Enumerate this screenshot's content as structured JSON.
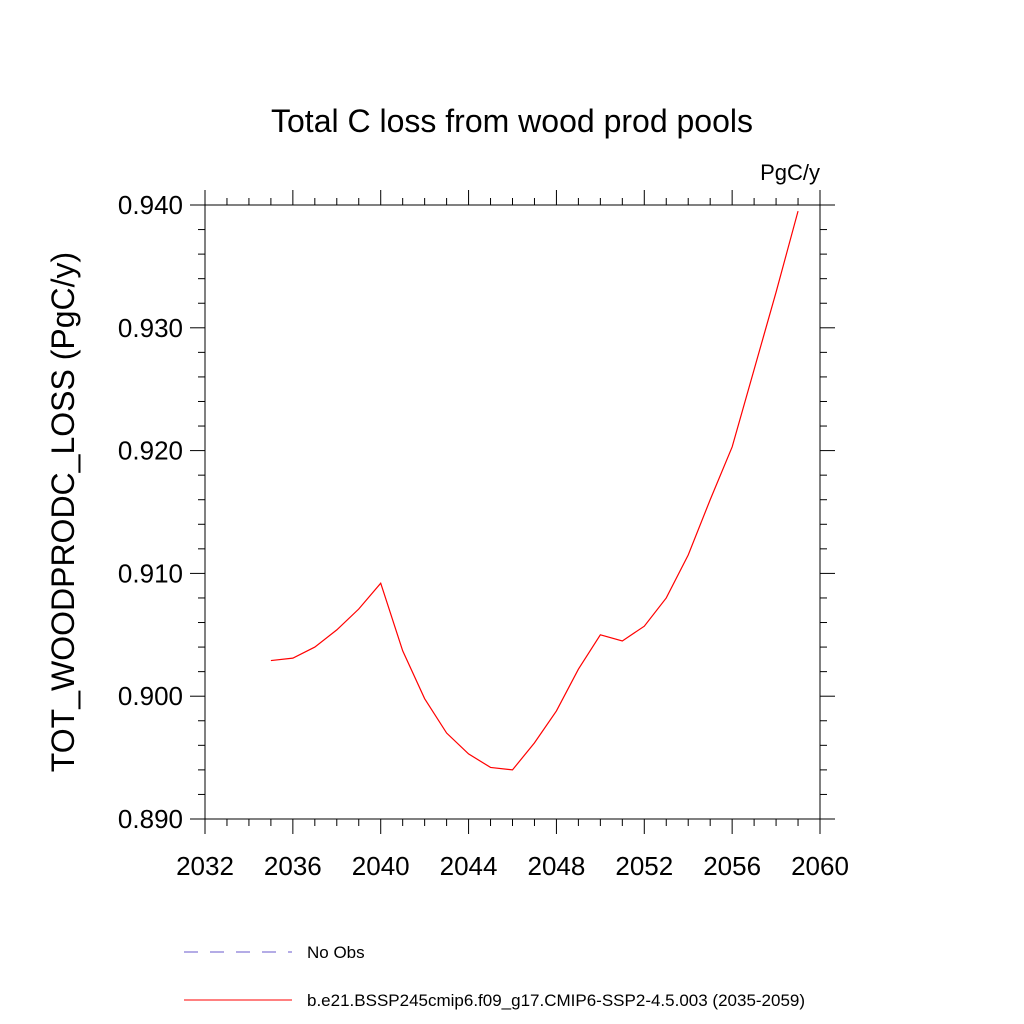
{
  "chart_data": {
    "type": "line",
    "title": "Total C loss from wood prod pools",
    "units_label": "PgC/y",
    "ylabel": "TOT_WOODPRODC_LOSS  (PgC/y)",
    "xlabel": "",
    "xlim": [
      2032,
      2060
    ],
    "ylim": [
      0.89,
      0.94
    ],
    "x_ticks": [
      2032,
      2036,
      2040,
      2044,
      2048,
      2052,
      2056,
      2060
    ],
    "x_tick_labels": [
      "2032",
      "2036",
      "2040",
      "2044",
      "2048",
      "2052",
      "2056",
      "2060"
    ],
    "y_ticks": [
      0.89,
      0.9,
      0.91,
      0.92,
      0.93,
      0.94
    ],
    "y_tick_labels": [
      "0.890",
      "0.900",
      "0.910",
      "0.920",
      "0.930",
      "0.940"
    ],
    "grid": false,
    "legend_position": "bottom",
    "series": [
      {
        "name": "b.e21.BSSP245cmip6.f09_g17.CMIP6-SSP2-4.5.003 (2035-2059)",
        "color": "#ff0000",
        "x": [
          2035,
          2036,
          2037,
          2038,
          2039,
          2040,
          2041,
          2042,
          2043,
          2044,
          2045,
          2046,
          2047,
          2048,
          2049,
          2050,
          2051,
          2052,
          2053,
          2054,
          2055,
          2056,
          2057,
          2058,
          2059
        ],
        "y": [
          0.9029,
          0.9031,
          0.904,
          0.9054,
          0.9071,
          0.9092,
          0.9037,
          0.8998,
          0.897,
          0.8953,
          0.8942,
          0.894,
          0.8962,
          0.8988,
          0.9022,
          0.905,
          0.9045,
          0.9057,
          0.908,
          0.9115,
          0.916,
          0.9203,
          0.9266,
          0.9329,
          0.9395
        ]
      }
    ],
    "legend": [
      {
        "label": "No Obs",
        "color": "#6a5acd",
        "dash": true
      },
      {
        "label": "b.e21.BSSP245cmip6.f09_g17.CMIP6-SSP2-4.5.003 (2035-2059)",
        "color": "#ff0000",
        "dash": false
      }
    ]
  }
}
